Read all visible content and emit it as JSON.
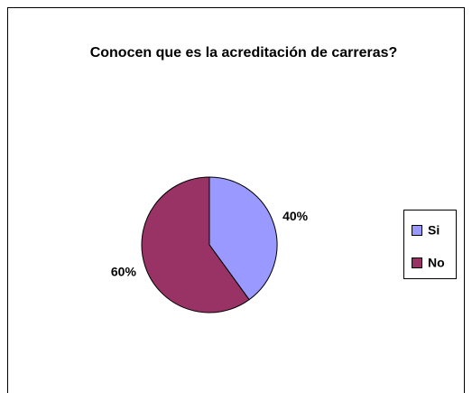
{
  "chart_data": {
    "type": "pie",
    "title": "Conocen que es la acreditación de carreras?",
    "categories": [
      "Si",
      "No"
    ],
    "values": [
      40,
      60
    ],
    "value_labels": [
      "40%",
      "60%"
    ],
    "colors": [
      "#9999ff",
      "#993366"
    ],
    "legend": "right"
  }
}
